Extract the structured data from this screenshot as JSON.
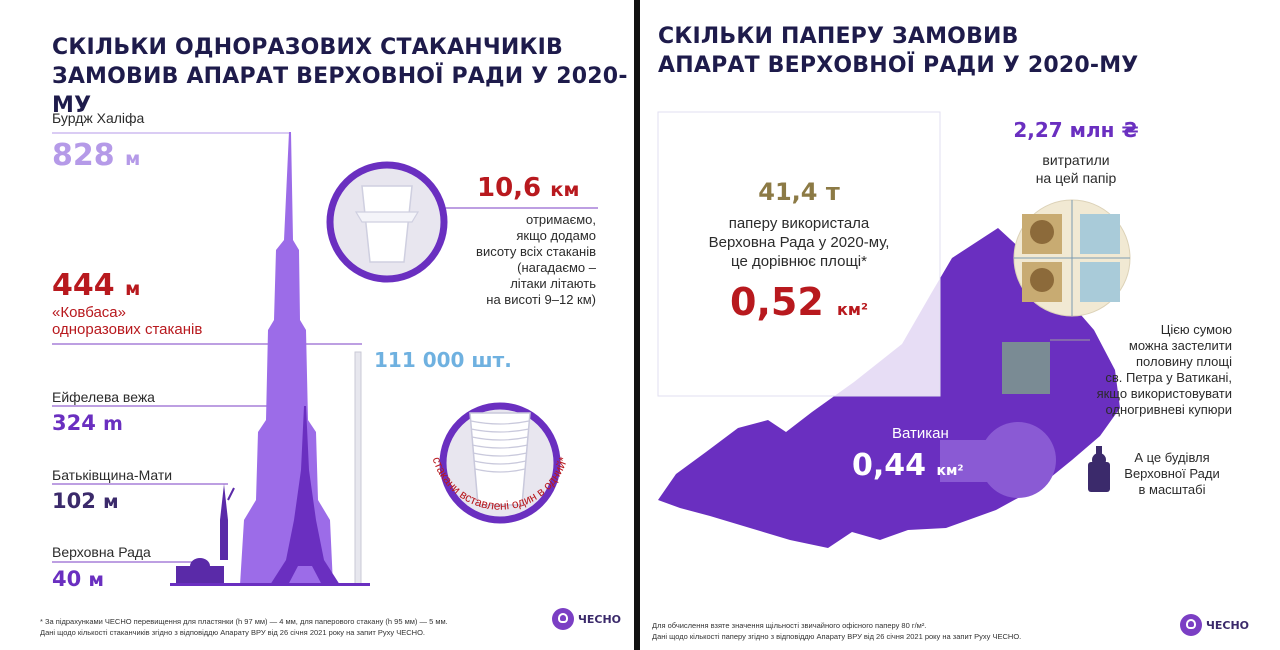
{
  "left": {
    "title_line1": "СКІЛЬКИ ОДНОРАЗОВИХ СТАКАНЧИКІВ",
    "title_line2": "ЗАМОВИВ АПАРАТ ВЕРХОВНОЇ РАДИ У 2020-МУ",
    "burj": {
      "label": "Бурдж Халіфа",
      "value": "828",
      "unit": "м"
    },
    "sausage": {
      "value": "444",
      "unit": "м",
      "line1": "«Ковбаса»",
      "line2": "одноразових стаканів"
    },
    "eiffel": {
      "label": "Ейфелева вежа",
      "value": "324",
      "unit": "m"
    },
    "motherland": {
      "label": "Батьківщина-Мати",
      "value": "102",
      "unit": "м"
    },
    "rada": {
      "label": "Верховна Рада",
      "value": "40",
      "unit": "м"
    },
    "km": {
      "value": "10,6",
      "unit": "км",
      "lines": [
        "отримаємо,",
        "якщо додамо",
        "висоту всіх стаканів",
        "(нагадаємо –",
        "літаки літають",
        "на висоті 9–12 км)"
      ]
    },
    "count": {
      "value": "111 000 шт."
    },
    "stacked_caption": "стакани вставлені один в одний*",
    "footnote_line1": "* За підрахунками ЧЕСНО перевищення для пластянки (h 97 мм) — 4 мм, для паперового стакану (h 95 мм) — 5 мм.",
    "footnote_line2": "Дані щодо кількості стаканчиків згідно з відповіддю Апарату ВРУ від 26 січня 2021 року на запит Руху ЧЕСНО.",
    "logo": "ЧЕСНО"
  },
  "right": {
    "title_line1": "СКІЛЬКИ ПАПЕРУ ЗАМОВИВ",
    "title_line2": "АПАРАТ ВЕРХОВНОЇ РАДИ У 2020-МУ",
    "paper": {
      "value": "41,4 т",
      "lines": [
        "паперу використала",
        "Верховна Рада у 2020-му,",
        "це дорівнює площі*"
      ],
      "area": "0,52",
      "area_unit": "км²"
    },
    "money": {
      "value": "2,27 млн ₴",
      "line1": "витратили",
      "line2": "на цей папір"
    },
    "note": {
      "lines": [
        "Цією сумою",
        "можна застелити",
        "половину площі",
        "св. Петра у Ватикані,",
        "якщо використовувати",
        "одногривневі купюри"
      ]
    },
    "vatican": {
      "label": "Ватикан",
      "value": "0,44",
      "unit": "км²"
    },
    "rada_note": {
      "lines": [
        "А це будівля",
        "Верховної Ради",
        "в масштабі"
      ]
    },
    "footnote_line1": "Для обчислення взяте значення щільності звичайного офісного паперу 80 г/м².",
    "footnote_line2": "Дані щодо кількості паперу згідно з відповіддю Апарату ВРУ від 26 січня 2021 року на запит Руху ЧЕСНО.",
    "logo": "ЧЕСНО"
  },
  "colors": {
    "navy": "#1e1b4b",
    "violet": "#6a2fc0",
    "lavender": "#b59ae8",
    "red": "#b8191e",
    "olive": "#8c7a45",
    "blue": "#6fb1e0"
  }
}
